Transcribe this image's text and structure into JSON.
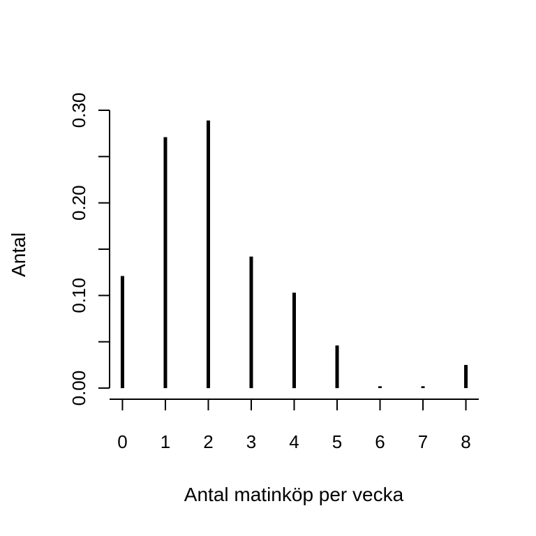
{
  "chart_data": {
    "type": "bar",
    "style": "spike",
    "xlabel": "Antal matinköp per vecka",
    "ylabel": "Antal",
    "categories": [
      "0",
      "1",
      "2",
      "3",
      "4",
      "5",
      "6",
      "7",
      "8"
    ],
    "values": [
      0.121,
      0.271,
      0.289,
      0.142,
      0.103,
      0.046,
      0.002,
      0.002,
      0.025
    ],
    "xlim": [
      -0.3,
      8.3
    ],
    "ylim": [
      -0.012,
      0.3
    ],
    "y_ticks": [
      0.0,
      0.05,
      0.1,
      0.15,
      0.2,
      0.25,
      0.3
    ],
    "y_tick_labels": [
      "0.00",
      "",
      "0.10",
      "",
      "0.20",
      "",
      "0.30"
    ],
    "grid": false,
    "bar_color": "#000000"
  }
}
